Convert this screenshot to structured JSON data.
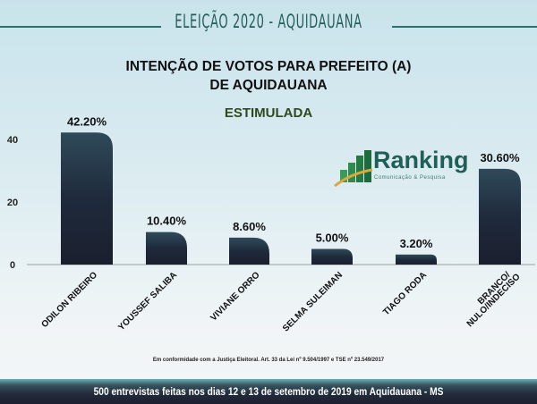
{
  "header": {
    "title": "ELEIÇÃO 2020 - AQUIDAUANA"
  },
  "chart_data": {
    "type": "bar",
    "title": "INTENÇÃO DE VOTOS PARA PREFEITO (A)",
    "title_line2": "DE AQUIDAUANA",
    "subtitle": "ESTIMULADA",
    "categories": [
      "ODILON RIBEIRO",
      "YOUSSEF SALIBA",
      "VIVIANE  ORRO",
      "SELMA SULEIMAN",
      "TIAGO RODA",
      "BRANCO/\nNULO/INDECISO"
    ],
    "values": [
      42.2,
      10.4,
      8.6,
      5.0,
      3.2,
      30.6
    ],
    "data_labels": [
      "42.20%",
      "10.40%",
      "8.60%",
      "5.00%",
      "3.20%",
      "30.60%"
    ],
    "yticks": [
      "0",
      "20",
      "40"
    ],
    "ylim": [
      0,
      45
    ],
    "grid": false,
    "bar_color": "#1e2538"
  },
  "logo": {
    "name": "Ranking",
    "tagline": "Comunicação & Pesquisa"
  },
  "legal": "Em conformidade com a Justiça Eleitoral. Art. 33 da Lei nº 9.504/1997 e TSE nº 23.549/2017",
  "footer": "500 entrevistas feitas nos dias 12 e 13 de setembro de 2019 em Aquidauana - MS"
}
